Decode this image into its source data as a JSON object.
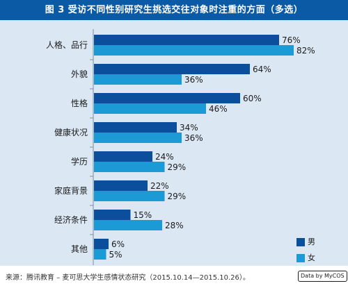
{
  "chart_data": {
    "type": "bar",
    "orientation": "horizontal",
    "title": "图 3 受访不同性别研究生挑选交往对象时注重的方面（多选）",
    "categories": [
      "人格、品行",
      "外貌",
      "性格",
      "健康状况",
      "学历",
      "家庭背景",
      "经济条件",
      "其他"
    ],
    "series": [
      {
        "name": "男",
        "color": "#0b4f9c",
        "values": [
          76,
          64,
          60,
          34,
          24,
          22,
          15,
          6
        ]
      },
      {
        "name": "女",
        "color": "#1b9ad6",
        "values": [
          82,
          36,
          46,
          36,
          29,
          29,
          28,
          5
        ]
      }
    ],
    "value_suffix": "%",
    "xlim": [
      0,
      100
    ],
    "grid": false,
    "legend_position": "bottom-right"
  },
  "footer": {
    "source": "来源：腾讯教育 – 麦可思大学生感情状态研究（2015.10.14—2015.10.26）。",
    "badge": "Data by MyCOS"
  }
}
